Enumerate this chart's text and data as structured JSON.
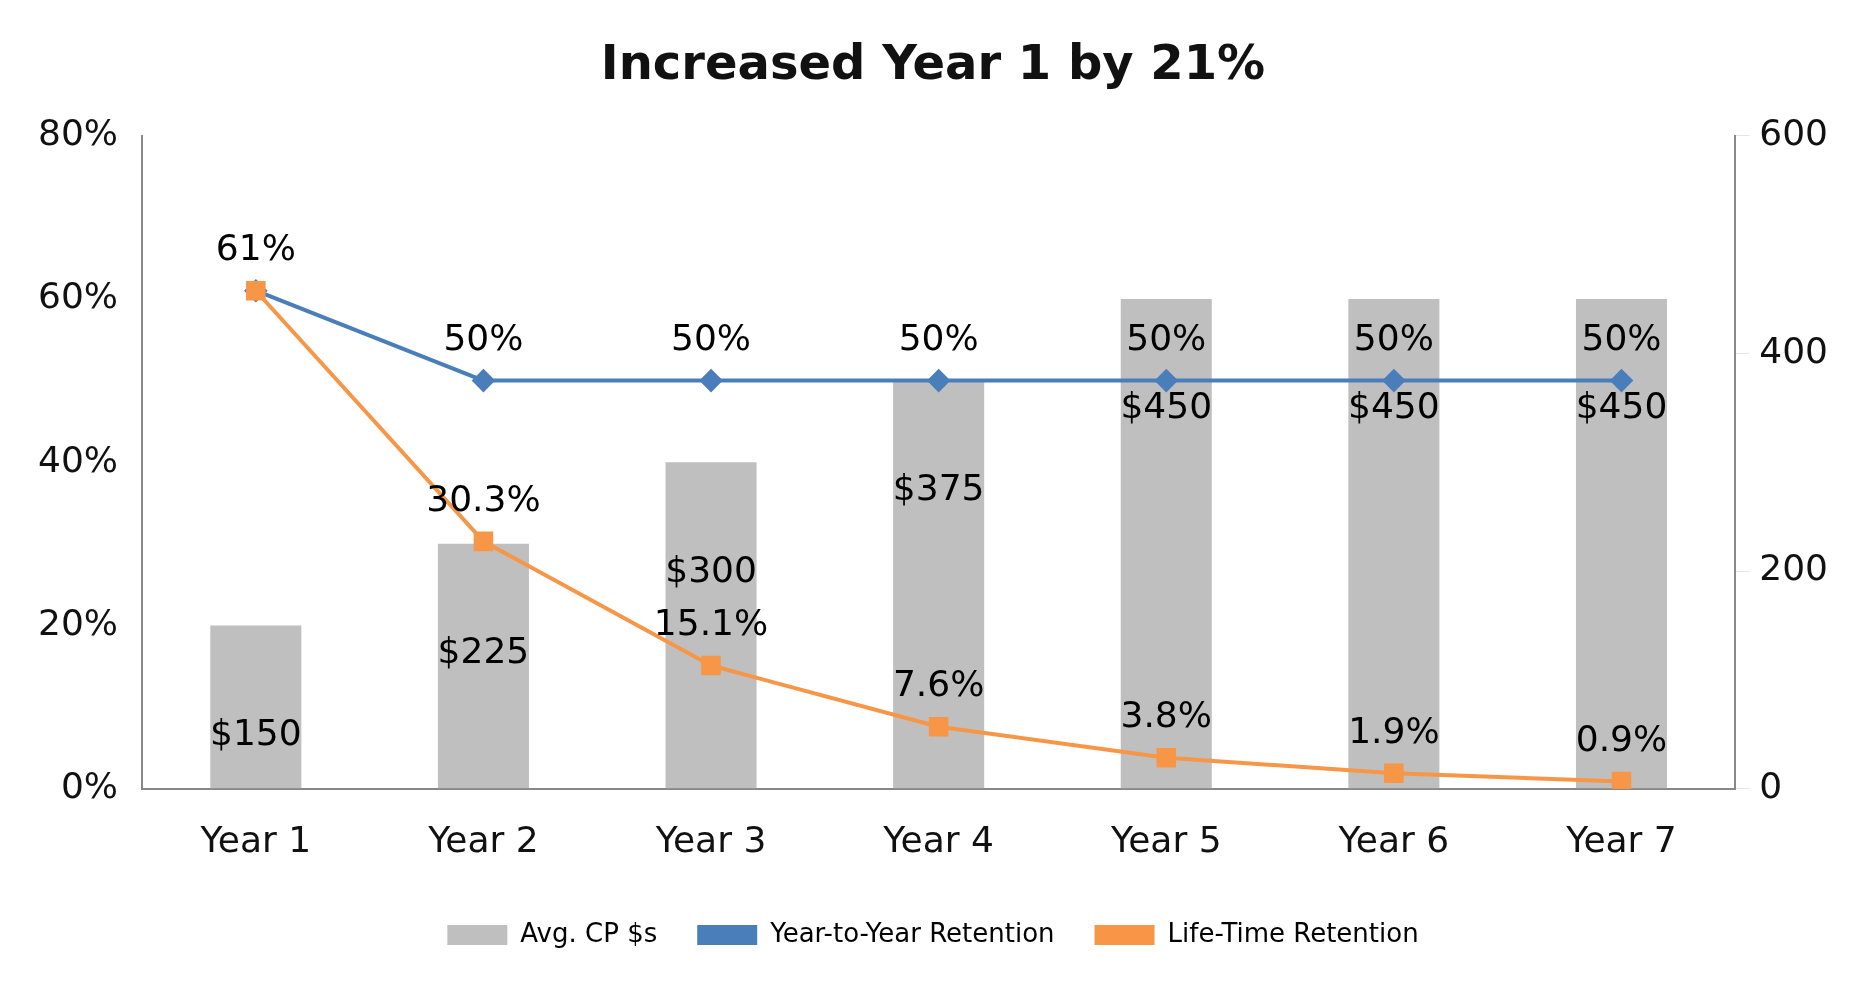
{
  "chart_data": {
    "type": "bar",
    "title": "Increased Year 1 by 21%",
    "categories": [
      "Year 1",
      "Year 2",
      "Year 3",
      "Year 4",
      "Year 5",
      "Year 6",
      "Year 7"
    ],
    "series": [
      {
        "name": "Avg. CP $s",
        "axis": "y2",
        "color": "#bfbfbf",
        "values": [
          150,
          225,
          300,
          375,
          450,
          450,
          450
        ],
        "value_labels": [
          "$150",
          "$225",
          "$300",
          "$375",
          "$450",
          "$450",
          "$450"
        ]
      },
      {
        "name": "Year-to-Year Retention",
        "type": "line",
        "color": "#4a7ebb",
        "marker": "diamond",
        "values": [
          61,
          50,
          50,
          50,
          50,
          50,
          50
        ],
        "value_labels": [
          "61%",
          "50%",
          "50%",
          "50%",
          "50%",
          "50%",
          "50%"
        ]
      },
      {
        "name": "Life-Time Retention",
        "type": "line",
        "color": "#f79646",
        "marker": "square",
        "values": [
          61,
          30.3,
          15.1,
          7.6,
          3.8,
          1.9,
          0.9
        ],
        "value_labels": [
          null,
          "30.3%",
          "15.1%",
          "7.6%",
          "3.8%",
          "1.9%",
          "0.9%"
        ]
      }
    ],
    "ylim": [
      0,
      80
    ],
    "yticks": [
      {
        "value": 0,
        "label": "0%"
      },
      {
        "value": 20,
        "label": "20%"
      },
      {
        "value": 40,
        "label": "40%"
      },
      {
        "value": 60,
        "label": "60%"
      },
      {
        "value": 80,
        "label": "80%"
      }
    ],
    "y2lim": [
      0,
      600
    ],
    "y2ticks": [
      0,
      200,
      400,
      600
    ],
    "legend": "bottom",
    "grid": false
  }
}
